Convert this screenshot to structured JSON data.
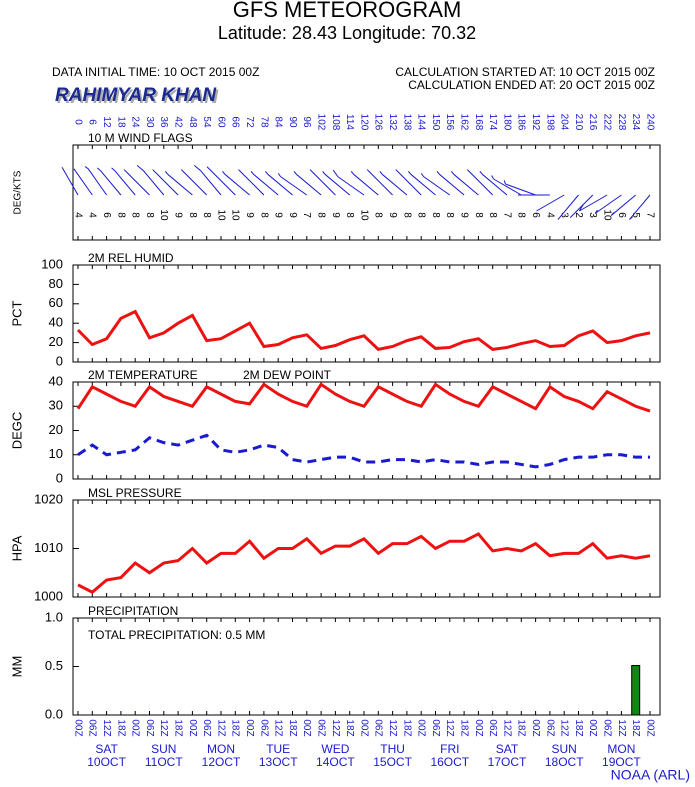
{
  "header": {
    "title": "GFS METEOROGRAM",
    "subtitle": "Latitude: 28.43 Longitude:  70.32",
    "initial_time": "DATA INITIAL TIME: 10 OCT 2015 00Z",
    "calc_started": "CALCULATION STARTED AT: 10 OCT 2015 00Z",
    "calc_ended": "CALCULATION ENDED AT: 20 OCT 2015 00Z",
    "station": "RAHIMYAR KHAN",
    "footer": "NOAA (ARL)"
  },
  "chart_data": [
    {
      "type": "wind",
      "title": "10 M  WIND FLAGS",
      "ylabel": "DEG/KTS",
      "x": [
        0,
        6,
        12,
        18,
        24,
        30,
        36,
        42,
        48,
        54,
        60,
        66,
        72,
        78,
        84,
        90,
        96,
        102,
        108,
        114,
        120,
        126,
        132,
        138,
        144,
        150,
        156,
        162,
        168,
        174,
        180,
        186,
        192,
        198,
        204,
        210,
        216,
        222,
        228,
        234,
        240
      ],
      "values": [
        4,
        4,
        6,
        8,
        8,
        8,
        10,
        9,
        8,
        8,
        10,
        10,
        9,
        8,
        9,
        9,
        7,
        8,
        9,
        8,
        10,
        8,
        9,
        8,
        8,
        8,
        8,
        9,
        8,
        8,
        7,
        8,
        6,
        4,
        3,
        2,
        3,
        10,
        6,
        5,
        7
      ],
      "direction": [
        210,
        215,
        215,
        220,
        220,
        225,
        220,
        225,
        230,
        225,
        220,
        225,
        230,
        225,
        230,
        230,
        235,
        230,
        225,
        230,
        235,
        230,
        225,
        230,
        225,
        230,
        235,
        230,
        230,
        225,
        230,
        240,
        250,
        270,
        300,
        320,
        315,
        300,
        305,
        310,
        320
      ],
      "color": "#1a1ad0"
    },
    {
      "type": "line",
      "title": "2M REL HUMID",
      "ylabel": "PCT",
      "x": [
        0,
        6,
        12,
        18,
        24,
        30,
        36,
        42,
        48,
        54,
        60,
        66,
        72,
        78,
        84,
        90,
        96,
        102,
        108,
        114,
        120,
        126,
        132,
        138,
        144,
        150,
        156,
        162,
        168,
        174,
        180,
        186,
        192,
        198,
        204,
        210,
        216,
        222,
        228,
        234,
        240
      ],
      "values": [
        33,
        18,
        24,
        45,
        52,
        25,
        30,
        40,
        48,
        22,
        24,
        32,
        40,
        16,
        18,
        25,
        28,
        14,
        17,
        23,
        27,
        13,
        16,
        22,
        26,
        14,
        15,
        21,
        24,
        13,
        15,
        19,
        22,
        16,
        17,
        27,
        32,
        20,
        22,
        27,
        30
      ],
      "color": "#ee1111",
      "ylim": [
        0,
        100
      ],
      "yticks": [
        0,
        20,
        40,
        60,
        80,
        100
      ]
    },
    {
      "type": "line",
      "ylabel": "DEGC",
      "ylim": [
        0,
        40
      ],
      "yticks": [
        0,
        10,
        20,
        30,
        40
      ],
      "x": [
        0,
        6,
        12,
        18,
        24,
        30,
        36,
        42,
        48,
        54,
        60,
        66,
        72,
        78,
        84,
        90,
        96,
        102,
        108,
        114,
        120,
        126,
        132,
        138,
        144,
        150,
        156,
        162,
        168,
        174,
        180,
        186,
        192,
        198,
        204,
        210,
        216,
        222,
        228,
        234,
        240
      ],
      "series": [
        {
          "name": "2M TEMPERATURE",
          "color": "#ee1111",
          "values": [
            29,
            38,
            35,
            32,
            30,
            38,
            34,
            32,
            30,
            38,
            35,
            32,
            31,
            39,
            35,
            32,
            30,
            39,
            35,
            32,
            30,
            38,
            35,
            32,
            30,
            39,
            35,
            32,
            30,
            38,
            35,
            32,
            29,
            38,
            34,
            32,
            29,
            36,
            33,
            30,
            28
          ]
        },
        {
          "name": "2M  DEW POINT",
          "color": "#1a1ad0",
          "values": [
            10,
            14,
            10,
            11,
            12,
            17,
            15,
            14,
            16,
            18,
            12,
            11,
            12,
            14,
            13,
            8,
            7,
            8,
            9,
            9,
            7,
            7,
            8,
            8,
            7,
            8,
            7,
            7,
            6,
            7,
            7,
            6,
            5,
            6,
            8,
            9,
            9,
            10,
            10,
            9,
            9
          ]
        }
      ]
    },
    {
      "type": "line",
      "title": "MSL PRESSURE",
      "ylabel": "HPA",
      "ylim": [
        1000,
        1020
      ],
      "yticks": [
        1000,
        1010,
        1020
      ],
      "x": [
        0,
        6,
        12,
        18,
        24,
        30,
        36,
        42,
        48,
        54,
        60,
        66,
        72,
        78,
        84,
        90,
        96,
        102,
        108,
        114,
        120,
        126,
        132,
        138,
        144,
        150,
        156,
        162,
        168,
        174,
        180,
        186,
        192,
        198,
        204,
        210,
        216,
        222,
        228,
        234,
        240
      ],
      "values": [
        1002.5,
        1001,
        1003.5,
        1004,
        1007,
        1005,
        1007,
        1007.5,
        1010,
        1007,
        1009,
        1009,
        1011.5,
        1008,
        1010,
        1010,
        1012,
        1009,
        1010.5,
        1010.5,
        1012,
        1009,
        1011,
        1011,
        1012.5,
        1010,
        1011.5,
        1011.5,
        1013,
        1009.5,
        1010,
        1009.5,
        1011,
        1008.5,
        1009,
        1009,
        1011,
        1008,
        1008.5,
        1008,
        1008.5
      ],
      "color": "#ee1111"
    },
    {
      "type": "bar",
      "title": "PRECIPITATION",
      "annotation": "TOTAL PRECIPITATION:   0.5 MM",
      "ylabel": "MM",
      "ylim": [
        0,
        1
      ],
      "yticks": [
        {
          "value": 0,
          "label": "0.0"
        },
        {
          "value": 0.5,
          "label": "0.5"
        },
        {
          "value": 1,
          "label": "1.0"
        }
      ],
      "x": [
        0,
        6,
        12,
        18,
        24,
        30,
        36,
        42,
        48,
        54,
        60,
        66,
        72,
        78,
        84,
        90,
        96,
        102,
        108,
        114,
        120,
        126,
        132,
        138,
        144,
        150,
        156,
        162,
        168,
        174,
        180,
        186,
        192,
        198,
        204,
        210,
        216,
        222,
        228,
        234,
        240
      ],
      "values": [
        0,
        0,
        0,
        0,
        0,
        0,
        0,
        0,
        0,
        0,
        0,
        0,
        0,
        0,
        0,
        0,
        0,
        0,
        0,
        0,
        0,
        0,
        0,
        0,
        0,
        0,
        0,
        0,
        0,
        0,
        0,
        0,
        0,
        0,
        0,
        0,
        0,
        0,
        0,
        0.51,
        0
      ],
      "color": "#118811",
      "time_labels": [
        "00Z",
        "06Z",
        "12Z",
        "18Z",
        "00Z",
        "06Z",
        "12Z",
        "18Z",
        "00Z",
        "06Z",
        "12Z",
        "18Z",
        "00Z",
        "06Z",
        "12Z",
        "18Z",
        "00Z",
        "06Z",
        "12Z",
        "18Z",
        "00Z",
        "06Z",
        "12Z",
        "18Z",
        "00Z",
        "06Z",
        "12Z",
        "18Z",
        "00Z",
        "06Z",
        "12Z",
        "18Z",
        "00Z",
        "06Z",
        "12Z",
        "18Z",
        "00Z",
        "06Z",
        "12Z",
        "18Z",
        "00Z"
      ],
      "day_labels": [
        {
          "dow": "SAT",
          "date": "10OCT"
        },
        {
          "dow": "SUN",
          "date": "11OCT"
        },
        {
          "dow": "MON",
          "date": "12OCT"
        },
        {
          "dow": "TUE",
          "date": "13OCT"
        },
        {
          "dow": "WED",
          "date": "14OCT"
        },
        {
          "dow": "THU",
          "date": "15OCT"
        },
        {
          "dow": "FRI",
          "date": "16OCT"
        },
        {
          "dow": "SAT",
          "date": "17OCT"
        },
        {
          "dow": "SUN",
          "date": "18OCT"
        },
        {
          "dow": "MON",
          "date": "19OCT"
        }
      ]
    }
  ]
}
